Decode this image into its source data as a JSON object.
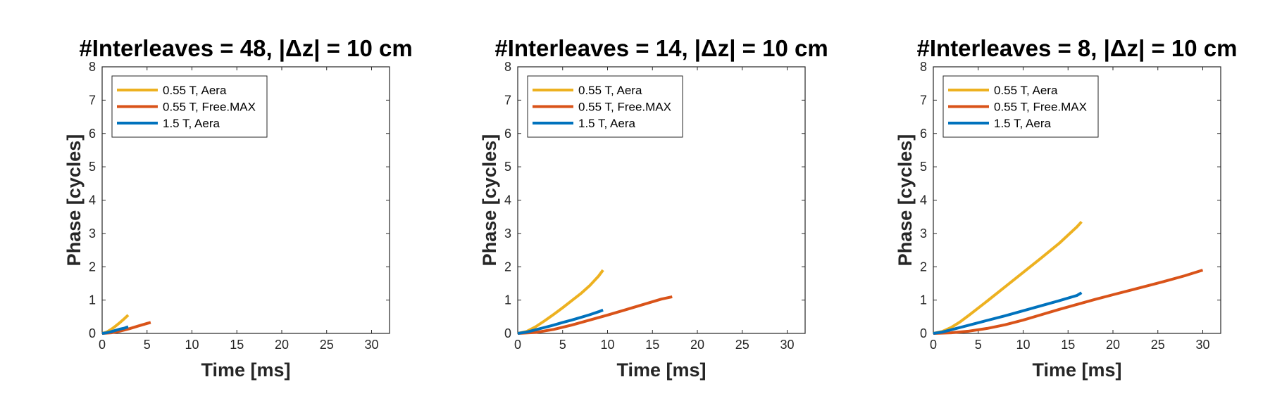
{
  "chart_data": [
    {
      "type": "line",
      "title": "#Interleaves = 48, |Δz| = 10 cm",
      "xlabel": "Time [ms]",
      "ylabel": "Phase [cycles]",
      "xlim": [
        0,
        32
      ],
      "ylim": [
        0,
        8
      ],
      "xticks": [
        0,
        5,
        10,
        15,
        20,
        25,
        30
      ],
      "yticks": [
        0,
        1,
        2,
        3,
        4,
        5,
        6,
        7,
        8
      ],
      "grid": false,
      "legend_position": "top-left",
      "series": [
        {
          "name": "0.55 T, Aera",
          "color": "#EDB120",
          "x": [
            0,
            0.5,
            1.0,
            1.5,
            2.0,
            2.5,
            2.9
          ],
          "y": [
            0,
            0.04,
            0.12,
            0.22,
            0.33,
            0.45,
            0.55
          ]
        },
        {
          "name": "0.55 T, Free.MAX",
          "color": "#D95319",
          "x": [
            0,
            1,
            2,
            3,
            4,
            5,
            5.4
          ],
          "y": [
            0,
            0.02,
            0.07,
            0.14,
            0.22,
            0.3,
            0.33
          ]
        },
        {
          "name": "1.5 T, Aera",
          "color": "#0072BD",
          "x": [
            0,
            0.5,
            1.0,
            1.5,
            2.0,
            2.5,
            2.9
          ],
          "y": [
            0,
            0.02,
            0.05,
            0.09,
            0.13,
            0.16,
            0.2
          ]
        }
      ]
    },
    {
      "type": "line",
      "title": "#Interleaves = 14, |Δz| = 10 cm",
      "xlabel": "Time [ms]",
      "ylabel": "Phase [cycles]",
      "xlim": [
        0,
        32
      ],
      "ylim": [
        0,
        8
      ],
      "xticks": [
        0,
        5,
        10,
        15,
        20,
        25,
        30
      ],
      "yticks": [
        0,
        1,
        2,
        3,
        4,
        5,
        6,
        7,
        8
      ],
      "grid": false,
      "legend_position": "top-left",
      "series": [
        {
          "name": "0.55 T, Aera",
          "color": "#EDB120",
          "x": [
            0,
            1,
            2,
            3,
            4,
            5,
            6,
            7,
            8,
            9,
            9.5
          ],
          "y": [
            0,
            0.06,
            0.2,
            0.38,
            0.57,
            0.77,
            0.98,
            1.19,
            1.43,
            1.72,
            1.9
          ]
        },
        {
          "name": "0.55 T, Free.MAX",
          "color": "#D95319",
          "x": [
            0,
            2,
            4,
            6,
            8,
            10,
            12,
            14,
            16,
            17.2
          ],
          "y": [
            0,
            0.03,
            0.12,
            0.25,
            0.4,
            0.55,
            0.71,
            0.87,
            1.03,
            1.1
          ]
        },
        {
          "name": "1.5 T, Aera",
          "color": "#0072BD",
          "x": [
            0,
            1,
            2,
            3,
            4,
            5,
            6,
            7,
            8,
            9,
            9.5
          ],
          "y": [
            0,
            0.04,
            0.11,
            0.18,
            0.25,
            0.33,
            0.4,
            0.48,
            0.56,
            0.65,
            0.7
          ]
        }
      ]
    },
    {
      "type": "line",
      "title": "#Interleaves = 8, |Δz| = 10 cm",
      "xlabel": "Time [ms]",
      "ylabel": "Phase [cycles]",
      "xlim": [
        0,
        32
      ],
      "ylim": [
        0,
        8
      ],
      "xticks": [
        0,
        5,
        10,
        15,
        20,
        25,
        30
      ],
      "yticks": [
        0,
        1,
        2,
        3,
        4,
        5,
        6,
        7,
        8
      ],
      "grid": false,
      "legend_position": "top-left",
      "series": [
        {
          "name": "0.55 T, Aera",
          "color": "#EDB120",
          "x": [
            0,
            1,
            2,
            3,
            4,
            6,
            8,
            10,
            12,
            14,
            16,
            16.5
          ],
          "y": [
            0,
            0.06,
            0.18,
            0.35,
            0.55,
            0.97,
            1.4,
            1.83,
            2.26,
            2.7,
            3.2,
            3.35
          ]
        },
        {
          "name": "0.55 T, Free.MAX",
          "color": "#D95319",
          "x": [
            0,
            2,
            4,
            6,
            8,
            10,
            12,
            14,
            16,
            18,
            20,
            22,
            24,
            26,
            28,
            30
          ],
          "y": [
            0,
            0.02,
            0.07,
            0.15,
            0.26,
            0.4,
            0.56,
            0.72,
            0.87,
            1.02,
            1.16,
            1.3,
            1.44,
            1.58,
            1.73,
            1.9
          ]
        },
        {
          "name": "1.5 T, Aera",
          "color": "#0072BD",
          "x": [
            0,
            1,
            2,
            4,
            6,
            8,
            10,
            12,
            14,
            16,
            16.5
          ],
          "y": [
            0,
            0.04,
            0.11,
            0.25,
            0.39,
            0.53,
            0.68,
            0.83,
            0.98,
            1.14,
            1.22
          ]
        }
      ]
    }
  ]
}
